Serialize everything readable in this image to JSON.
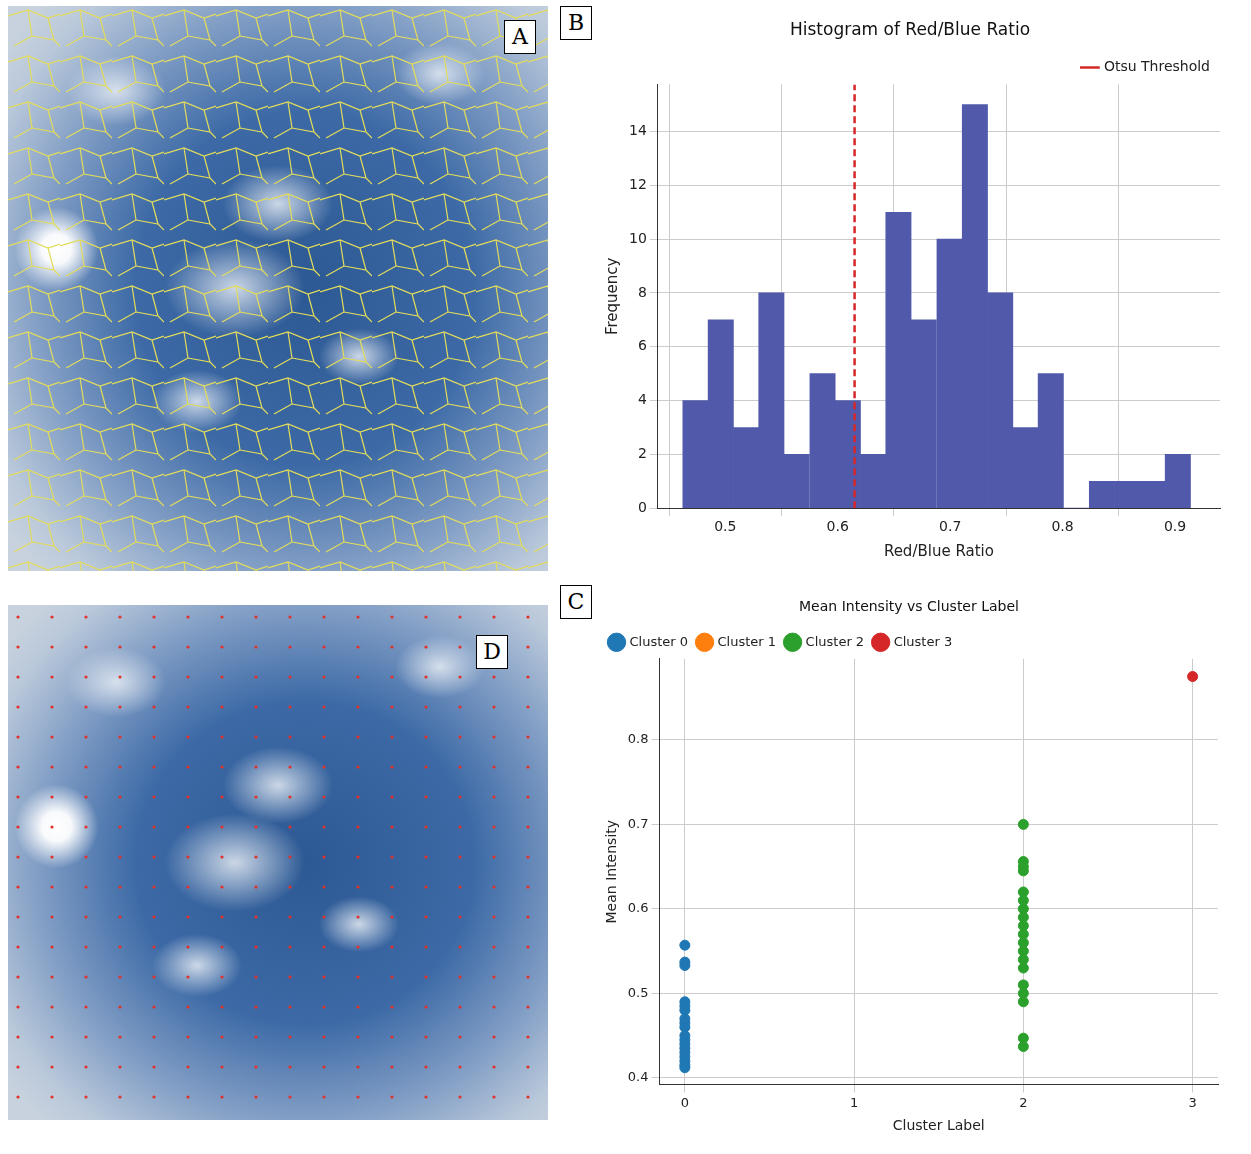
{
  "chart_data": [
    {
      "panel_label": "B",
      "type": "histogram",
      "title": "Histogram of Red/Blue Ratio",
      "x_label": "Red/Blue Ratio",
      "y_label": "Frequency",
      "bins": [
        0.462,
        0.485,
        0.507,
        0.53,
        0.552,
        0.575,
        0.598,
        0.62,
        0.643,
        0.665,
        0.688,
        0.711,
        0.733,
        0.756,
        0.778,
        0.801,
        0.824,
        0.846,
        0.869,
        0.891,
        0.914
      ],
      "values": [
        4,
        7,
        3,
        8,
        2,
        5,
        4,
        2,
        11,
        7,
        10,
        15,
        8,
        3,
        5,
        0,
        1,
        1,
        1,
        2
      ],
      "color": "#5159ab",
      "xlim": [
        0.44,
        0.94
      ],
      "xticks": [
        0.5,
        0.6,
        0.7,
        0.8,
        0.9
      ],
      "ylim": [
        0,
        15.75
      ],
      "yticks": [
        0,
        2,
        4,
        6,
        8,
        10,
        12,
        14
      ],
      "grid": true,
      "legend": "top right",
      "annotations": [
        {
          "type": "vline",
          "name": "Otsu Threshold",
          "x": 0.615,
          "color": "#d62728",
          "line_style": "dashed"
        }
      ]
    },
    {
      "panel_label": "C",
      "type": "scatter",
      "title": "Mean Intensity vs Cluster Label",
      "x_label": "Cluster Label",
      "y_label": "Mean Intensity",
      "series": [
        {
          "name": "Cluster 0",
          "color": "#1f77b4",
          "x": [
            0,
            0,
            0,
            0,
            0,
            0,
            0,
            0,
            0,
            0,
            0,
            0,
            0,
            0,
            0,
            0,
            0,
            0
          ],
          "values": [
            0.557,
            0.537,
            0.533,
            0.49,
            0.485,
            0.48,
            0.47,
            0.465,
            0.46,
            0.45,
            0.445,
            0.44,
            0.435,
            0.43,
            0.425,
            0.42,
            0.415,
            0.412
          ]
        },
        {
          "name": "Cluster 1",
          "color": "#ff7f0e",
          "x": [],
          "values": []
        },
        {
          "name": "Cluster 2",
          "color": "#2ca02c",
          "x": [
            2,
            2,
            2,
            2,
            2,
            2,
            2,
            2,
            2,
            2,
            2,
            2,
            2,
            2,
            2,
            2,
            2,
            2,
            2
          ],
          "values": [
            0.7,
            0.656,
            0.65,
            0.645,
            0.62,
            0.61,
            0.6,
            0.59,
            0.58,
            0.57,
            0.56,
            0.55,
            0.54,
            0.53,
            0.51,
            0.5,
            0.49,
            0.447,
            0.437
          ]
        },
        {
          "name": "Cluster 3",
          "color": "#d62728",
          "x": [
            3
          ],
          "values": [
            0.875
          ]
        }
      ],
      "xlim": [
        -0.15,
        3.15
      ],
      "xticks": [
        0,
        1,
        2,
        3
      ],
      "ylim": [
        0.392,
        0.896
      ],
      "yticks": [
        0.4,
        0.5,
        0.6,
        0.7,
        0.8
      ],
      "grid": true,
      "legend": "top left"
    }
  ],
  "images": [
    {
      "panel_label": "A"
    },
    {
      "panel_label": "D"
    }
  ]
}
